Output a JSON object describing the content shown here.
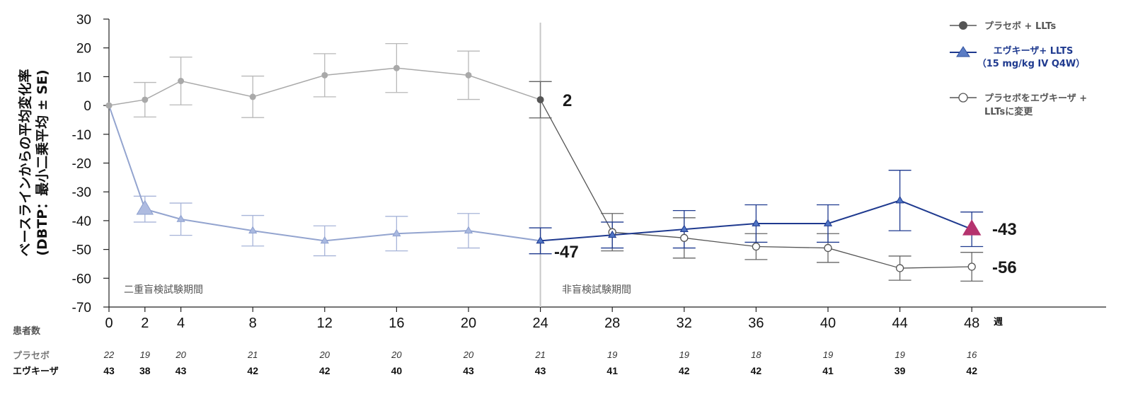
{
  "chart_data": {
    "type": "line",
    "ylabel_line1": "ベースラインからの平均変化率",
    "ylabel_line2": "(DBTP：最小二乗平均 ± SE)",
    "xlabel": "週",
    "ylim": [
      -70,
      30
    ],
    "yticks": [
      30,
      20,
      10,
      0,
      -10,
      -20,
      -30,
      -40,
      -50,
      -60,
      -70
    ],
    "xticks": [
      0,
      2,
      4,
      8,
      12,
      16,
      20,
      24,
      28,
      32,
      36,
      40,
      44,
      48
    ],
    "grid": false,
    "legend_position": "top-right",
    "periods": [
      "二重盲検試験期間",
      "非盲検試験期間"
    ],
    "series": [
      {
        "name": "プラセボ + LLTs",
        "color": "#a9a9a9",
        "x": [
          0,
          2,
          4,
          8,
          12,
          16,
          20,
          24
        ],
        "y": [
          0,
          2,
          8.5,
          3,
          10.5,
          13,
          10.5,
          2
        ],
        "se": [
          0,
          6,
          8.3,
          7.2,
          7.5,
          8.5,
          8.4,
          6.3
        ]
      },
      {
        "name": "エヴキーザ+ LLTS",
        "name_line2": "（15 mg/kg IV Q4W）",
        "color": "#1f3a8f",
        "x": [
          0,
          2,
          4,
          8,
          12,
          16,
          20,
          24,
          28,
          32,
          36,
          40,
          44,
          48
        ],
        "y": [
          0,
          -36,
          -39.5,
          -43.5,
          -47,
          -44.5,
          -43.5,
          -47,
          -45,
          -43,
          -41,
          -41,
          -33,
          -43
        ],
        "se": [
          0,
          4.5,
          5.6,
          5.3,
          5.2,
          6,
          6,
          4.5,
          4.5,
          6.5,
          6.5,
          6.5,
          10.5,
          6
        ]
      },
      {
        "name": "プラセボをエヴキーザ +",
        "name_line2": "LLTsに変更",
        "color": "#555555",
        "x": [
          24,
          28,
          32,
          36,
          40,
          44,
          48
        ],
        "y": [
          2,
          -44,
          -46,
          -49,
          -49.5,
          -56.5,
          -56
        ],
        "se": [
          6.3,
          6.5,
          7,
          4.5,
          5,
          4.2,
          5
        ]
      }
    ],
    "end_labels": [
      "2",
      "-47",
      "-43",
      "-56"
    ],
    "risk_table": {
      "header": "患者数",
      "rows": [
        {
          "label": "プラセボ",
          "values": [
            "22",
            "19",
            "20",
            "21",
            "20",
            "20",
            "20",
            "21",
            "19",
            "19",
            "18",
            "19",
            "19",
            "16"
          ]
        },
        {
          "label": "エヴキーザ",
          "values": [
            "43",
            "38",
            "43",
            "42",
            "42",
            "40",
            "43",
            "43",
            "41",
            "42",
            "42",
            "41",
            "39",
            "42"
          ]
        }
      ]
    }
  },
  "colors": {
    "placebo": "#a9a9a9",
    "evkeeza_light": "#93a4cf",
    "evkeeza_dark": "#1f3a8f",
    "switch": "#555555",
    "highlight": "#b5336e"
  }
}
